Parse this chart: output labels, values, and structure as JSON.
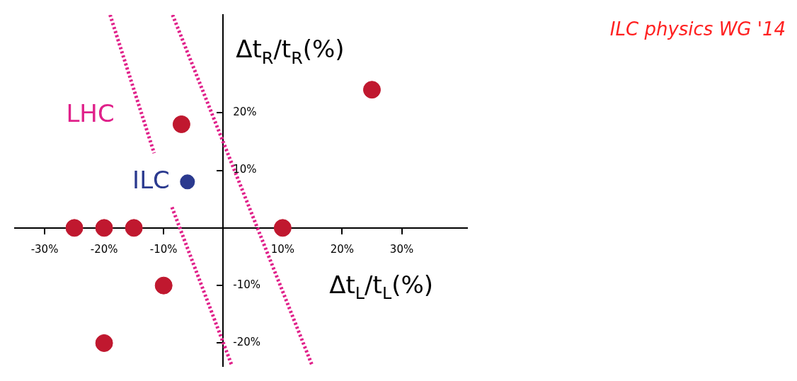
{
  "chart_data": {
    "type": "scatter",
    "xlabel": "Δt$_{L}$/t$_{L}$(%)",
    "ylabel": "Δt$_{R}$/t$_{R}$(%)",
    "annotations": [
      "ILC physics WG '14"
    ],
    "xlim": [
      -35,
      41
    ],
    "ylim": [
      -24,
      37
    ],
    "xticks": [
      {
        "value": -30,
        "label": "-30%"
      },
      {
        "value": -20,
        "label": "-20%"
      },
      {
        "value": -10,
        "label": "-10%"
      },
      {
        "value": 10,
        "label": "10%"
      },
      {
        "value": 20,
        "label": "20%"
      },
      {
        "value": 30,
        "label": "30%"
      }
    ],
    "yticks": [
      {
        "value": -20,
        "label": "-20%"
      },
      {
        "value": -10,
        "label": "-10%"
      },
      {
        "value": 10,
        "label": "10%"
      },
      {
        "value": 20,
        "label": "20%"
      }
    ],
    "grid": false,
    "legend": false,
    "series": [
      {
        "type": "scatter",
        "color": "#c0182f",
        "marker": "circle",
        "x": [
          -25,
          -20,
          -15,
          10,
          -10,
          -20,
          -7,
          25
        ],
        "values": [
          0,
          0,
          0,
          0,
          -10,
          -20,
          18,
          24
        ]
      },
      {
        "type": "scatter",
        "name": "ILC",
        "color": "#2b3a8f",
        "marker": "circle",
        "x": [
          -6
        ],
        "values": [
          8
        ]
      },
      {
        "type": "line",
        "name": "LHC",
        "color": "#e0218a",
        "line_style": "dotted",
        "marker": "none",
        "x": [
          -19,
          -11.6
        ],
        "values": [
          37,
          13
        ]
      },
      {
        "type": "line",
        "color": "#e0218a",
        "line_style": "dotted",
        "marker": "none",
        "x": [
          -8.6,
          1.5
        ],
        "values": [
          3.6,
          -24
        ]
      },
      {
        "type": "line",
        "color": "#e0218a",
        "line_style": "dotted",
        "marker": "none",
        "x": [
          -8.5,
          15
        ],
        "values": [
          37,
          -24
        ]
      }
    ]
  }
}
